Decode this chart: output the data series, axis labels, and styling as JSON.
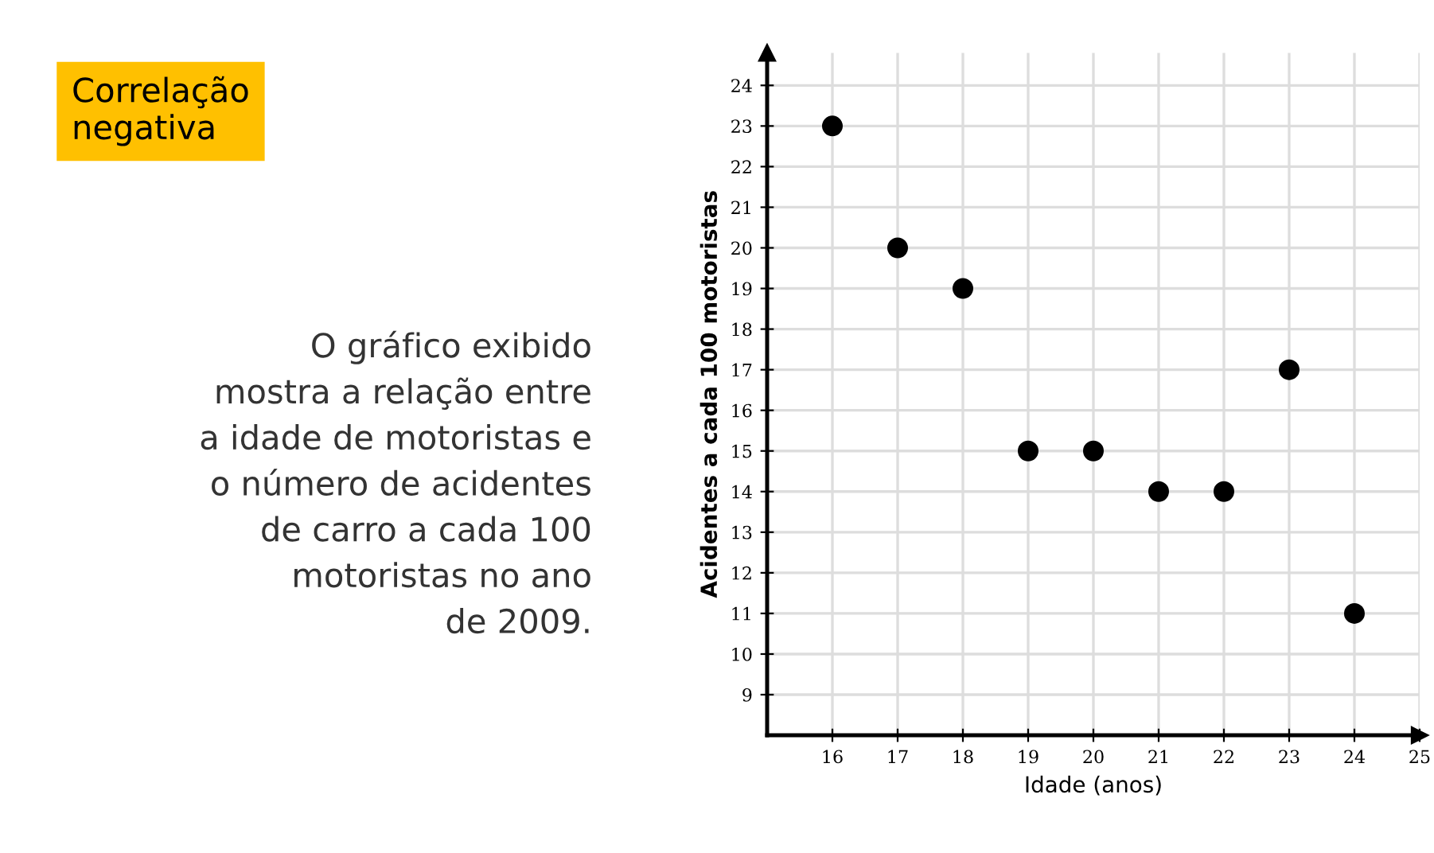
{
  "chart_data": {
    "type": "scatter",
    "title": "Correlação\nnegativa",
    "annotations": [
      "O gráfico exibido\nmostra a relação entre\na idade de motoristas e\no número de acidentes\nde carro a cada 100\nmotoristas no ano\nde 2009."
    ],
    "xlabel": "Idade (anos)",
    "ylabel": "Acidentes a cada 100 motoristas",
    "x": [
      16,
      17,
      18,
      19,
      20,
      21,
      22,
      23,
      24
    ],
    "series": [
      {
        "color": "#000000",
        "values": [
          23,
          20,
          19,
          15,
          15,
          14,
          14,
          17,
          11
        ]
      }
    ],
    "xlim": [
      15,
      25
    ],
    "ylim": [
      8,
      24.8
    ],
    "xticks": [
      16,
      17,
      18,
      19,
      20,
      21,
      22,
      23,
      24,
      25
    ],
    "yticks": [
      9,
      10,
      11,
      12,
      13,
      14,
      15,
      16,
      17,
      18,
      19,
      20,
      21,
      22,
      23,
      24
    ],
    "grid": true,
    "marker": "circle",
    "legend": false
  }
}
